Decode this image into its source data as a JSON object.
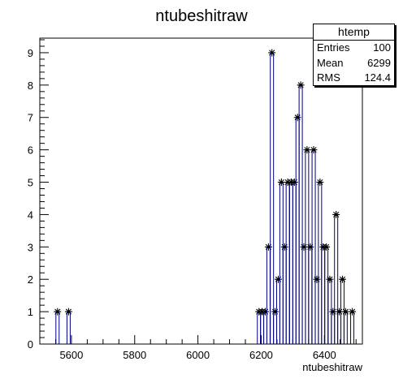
{
  "chart_data": {
    "type": "histogram",
    "title": "ntubeshitraw",
    "xlabel": "ntubeshitraw",
    "ylabel": "",
    "xlim": [
      5500,
      6520
    ],
    "ylim": [
      0,
      9.45
    ],
    "x_ticks": [
      5600,
      5800,
      6000,
      6200,
      6400
    ],
    "y_ticks": [
      0,
      1,
      2,
      3,
      4,
      5,
      6,
      7,
      8,
      9
    ],
    "bin_width": 10.2,
    "markers": "asterisk",
    "line_color": "#000080",
    "marker_color": "#000000",
    "points": [
      {
        "x": 5556,
        "y": 1
      },
      {
        "x": 5591,
        "y": 1
      },
      {
        "x": 6193,
        "y": 1
      },
      {
        "x": 6203,
        "y": 1
      },
      {
        "x": 6213,
        "y": 1
      },
      {
        "x": 6223,
        "y": 3
      },
      {
        "x": 6234,
        "y": 9
      },
      {
        "x": 6244,
        "y": 1
      },
      {
        "x": 6254,
        "y": 2
      },
      {
        "x": 6264,
        "y": 5
      },
      {
        "x": 6274,
        "y": 3
      },
      {
        "x": 6284,
        "y": 5
      },
      {
        "x": 6295,
        "y": 5
      },
      {
        "x": 6305,
        "y": 5
      },
      {
        "x": 6315,
        "y": 7
      },
      {
        "x": 6325,
        "y": 8
      },
      {
        "x": 6335,
        "y": 3
      },
      {
        "x": 6345,
        "y": 6
      },
      {
        "x": 6355,
        "y": 3
      },
      {
        "x": 6366,
        "y": 6
      },
      {
        "x": 6376,
        "y": 2
      },
      {
        "x": 6386,
        "y": 5
      },
      {
        "x": 6396,
        "y": 3
      },
      {
        "x": 6406,
        "y": 3
      },
      {
        "x": 6417,
        "y": 2
      },
      {
        "x": 6427,
        "y": 1
      },
      {
        "x": 6437,
        "y": 4
      },
      {
        "x": 6447,
        "y": 1
      },
      {
        "x": 6457,
        "y": 2
      },
      {
        "x": 6467,
        "y": 1
      },
      {
        "x": 6488,
        "y": 1
      }
    ]
  },
  "stats": {
    "title": "htemp",
    "entries_label": "Entries",
    "entries_value": "100",
    "mean_label": "Mean",
    "mean_value": "6299",
    "rms_label": "RMS",
    "rms_value": "124.4"
  }
}
